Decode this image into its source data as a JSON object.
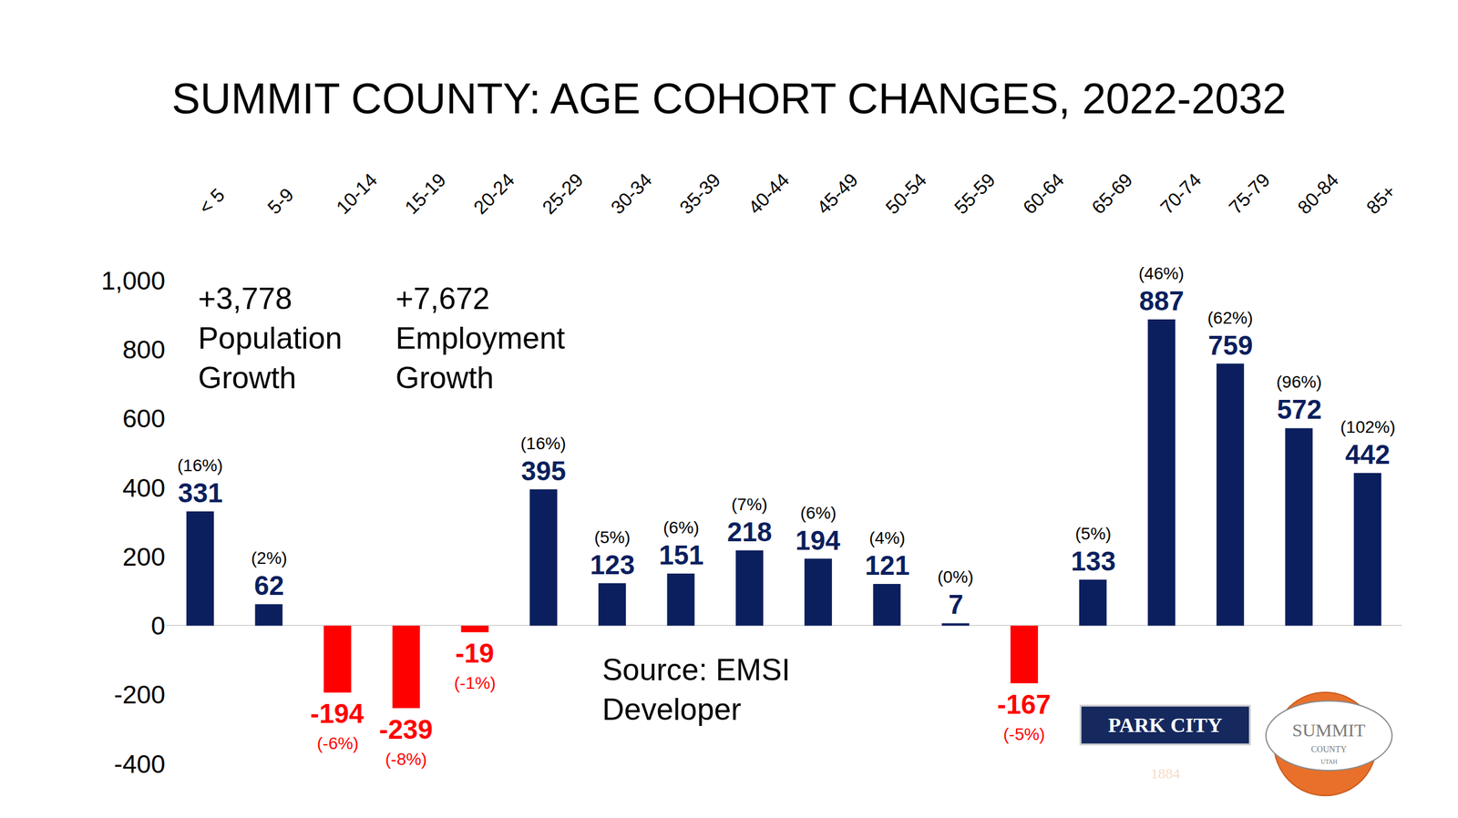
{
  "chart_data": {
    "type": "bar",
    "title": "SUMMIT COUNTY: AGE COHORT CHANGES, 2022-2032",
    "categories": [
      "< 5",
      "5-9",
      "10-14",
      "15-19",
      "20-24",
      "25-29",
      "30-34",
      "35-39",
      "40-44",
      "45-49",
      "50-54",
      "55-59",
      "60-64",
      "65-69",
      "70-74",
      "75-79",
      "80-84",
      "85+"
    ],
    "values": [
      331,
      62,
      -194,
      -239,
      -19,
      395,
      123,
      151,
      218,
      194,
      121,
      7,
      -167,
      133,
      887,
      759,
      572,
      442
    ],
    "colors": [
      "#0b1f5e",
      "#0b1f5e",
      "#ff0000",
      "#ff0000",
      "#ff0000",
      "#0b1f5e",
      "#0b1f5e",
      "#0b1f5e",
      "#0b1f5e",
      "#0b1f5e",
      "#0b1f5e",
      "#0b1f5e",
      "#ff0000",
      "#0b1f5e",
      "#0b1f5e",
      "#0b1f5e",
      "#0b1f5e",
      "#0b1f5e"
    ],
    "data_labels": true,
    "percent_change_labels": [
      "(16%)",
      "(2%)",
      "(-6%)",
      "(-8%)",
      "(-1%)",
      "(16%)",
      "(5%)",
      "(6%)",
      "(7%)",
      "(6%)",
      "(4%)",
      "(0%)",
      "(-5%)",
      "(5%)",
      "(46%)",
      "(62%)",
      "(96%)",
      "(102%)"
    ],
    "ylim": [
      -400,
      1000
    ],
    "yticks": [
      -400,
      -200,
      0,
      200,
      400,
      600,
      800,
      {
        "value": 1000,
        "label": "1,000"
      }
    ],
    "grid": false,
    "annotations": [
      {
        "text": [
          "+3,778",
          "Population",
          "Growth"
        ]
      },
      {
        "text": [
          "+7,672",
          "Employment",
          "Growth"
        ]
      },
      {
        "text": [
          "Source: EMSI",
          "Developer"
        ]
      }
    ],
    "logos": [
      {
        "lines": [
          "PARK CITY",
          "1884"
        ]
      },
      {
        "lines": [
          "SUMMIT",
          "COUNTY",
          "UTAH"
        ]
      }
    ]
  }
}
